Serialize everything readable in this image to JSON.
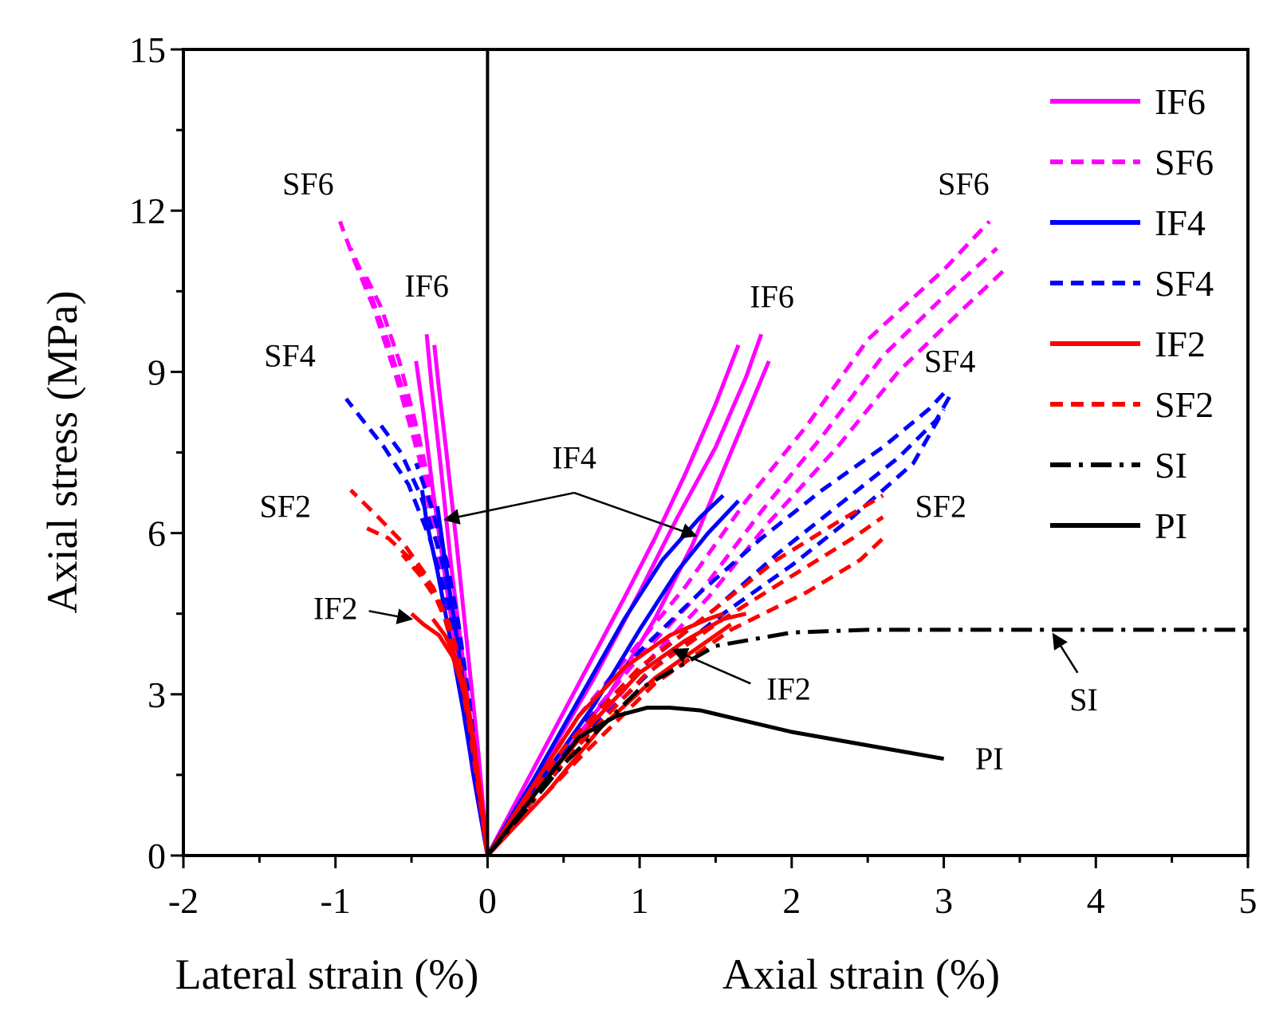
{
  "chart_data": {
    "type": "line",
    "ylabel": "Axial stress (MPa)",
    "xlabel_left": "Lateral strain (%)",
    "xlabel_right": "Axial strain (%)",
    "xlim": [
      -2,
      5
    ],
    "ylim": [
      0,
      15
    ],
    "x_ticks": [
      "-2",
      "-1",
      "0",
      "1",
      "2",
      "3",
      "4",
      "5"
    ],
    "y_ticks": [
      "0",
      "3",
      "6",
      "9",
      "12",
      "15"
    ],
    "grid": false,
    "legend_position": "top-right",
    "legend": [
      {
        "name": "IF6",
        "color": "#ff00ff",
        "style": "solid"
      },
      {
        "name": "SF6",
        "color": "#ff00ff",
        "style": "dash"
      },
      {
        "name": "IF4",
        "color": "#0000ff",
        "style": "solid"
      },
      {
        "name": "SF4",
        "color": "#0000ff",
        "style": "dash"
      },
      {
        "name": "IF2",
        "color": "#ff0000",
        "style": "solid"
      },
      {
        "name": "SF2",
        "color": "#ff0000",
        "style": "dash"
      },
      {
        "name": "SI",
        "color": "#000000",
        "style": "dashdot"
      },
      {
        "name": "PI",
        "color": "#000000",
        "style": "solid"
      }
    ],
    "series": [
      {
        "name": "IF6",
        "color": "#ff00ff",
        "style": "solid",
        "curves": [
          {
            "x": [
              0,
              0.3,
              0.6,
              0.9,
              1.1,
              1.3,
              1.5,
              1.65
            ],
            "y": [
              0,
              1.6,
              3.2,
              4.8,
              5.9,
              7.1,
              8.4,
              9.5
            ]
          },
          {
            "x": [
              0,
              0.35,
              0.7,
              1.0,
              1.25,
              1.5,
              1.7,
              1.8
            ],
            "y": [
              0,
              1.6,
              3.3,
              4.9,
              6.3,
              7.6,
              8.9,
              9.7
            ]
          },
          {
            "x": [
              0,
              0.4,
              0.8,
              1.1,
              1.35,
              1.6,
              1.85
            ],
            "y": [
              0,
              1.5,
              3.0,
              4.4,
              5.8,
              7.5,
              9.2
            ]
          },
          {
            "x": [
              0,
              -0.1,
              -0.18,
              -0.27,
              -0.36,
              -0.42,
              -0.47
            ],
            "y": [
              0,
              1.6,
              3.3,
              5.0,
              6.8,
              8.2,
              9.2
            ]
          },
          {
            "x": [
              0,
              -0.08,
              -0.16,
              -0.24,
              -0.31,
              -0.37,
              -0.4
            ],
            "y": [
              0,
              1.8,
              3.6,
              5.4,
              7.3,
              8.8,
              9.7
            ]
          },
          {
            "x": [
              0,
              -0.06,
              -0.13,
              -0.2,
              -0.27,
              -0.32,
              -0.35
            ],
            "y": [
              0,
              1.9,
              3.8,
              5.7,
              7.5,
              8.7,
              9.5
            ]
          }
        ]
      },
      {
        "name": "SF6",
        "color": "#ff00ff",
        "style": "dash",
        "curves": [
          {
            "x": [
              0,
              0.6,
              0.95,
              1.3,
              1.7,
              2.1,
              2.5,
              3.0,
              3.3
            ],
            "y": [
              0,
              2.6,
              3.8,
              5.0,
              6.6,
              8.0,
              9.6,
              10.9,
              11.8
            ]
          },
          {
            "x": [
              0,
              0.65,
              1.0,
              1.4,
              1.8,
              2.2,
              2.6,
              3.0,
              3.35
            ],
            "y": [
              0,
              2.5,
              3.7,
              4.9,
              6.4,
              7.8,
              9.3,
              10.4,
              11.3
            ]
          },
          {
            "x": [
              0,
              0.7,
              1.05,
              1.45,
              1.85,
              2.3,
              2.7,
              3.1,
              3.4
            ],
            "y": [
              0,
              2.4,
              3.6,
              4.8,
              6.2,
              7.6,
              9.0,
              10.1,
              10.9
            ]
          },
          {
            "x": [
              0,
              -0.1,
              -0.2,
              -0.32,
              -0.45,
              -0.6,
              -0.75,
              -0.88,
              -0.97
            ],
            "y": [
              0,
              1.7,
              3.5,
              5.6,
              7.4,
              8.9,
              10.2,
              11.1,
              11.8
            ]
          },
          {
            "x": [
              0,
              -0.1,
              -0.19,
              -0.28,
              -0.4,
              -0.52,
              -0.66,
              -0.79,
              -0.9
            ],
            "y": [
              0,
              1.7,
              3.4,
              5.2,
              6.9,
              8.3,
              9.6,
              10.6,
              11.3
            ]
          },
          {
            "x": [
              0,
              -0.09,
              -0.17,
              -0.25,
              -0.35,
              -0.46,
              -0.58,
              -0.7,
              -0.82
            ],
            "y": [
              0,
              1.6,
              3.2,
              4.9,
              6.5,
              7.9,
              9.2,
              10.2,
              10.9
            ]
          }
        ]
      },
      {
        "name": "IF4",
        "color": "#0000ff",
        "style": "solid",
        "curves": [
          {
            "x": [
              0,
              0.3,
              0.6,
              0.9,
              1.15,
              1.4,
              1.55
            ],
            "y": [
              0,
              1.4,
              2.9,
              4.4,
              5.5,
              6.3,
              6.7
            ]
          },
          {
            "x": [
              0,
              0.35,
              0.7,
              1.0,
              1.25,
              1.45,
              1.65
            ],
            "y": [
              0,
              1.4,
              2.8,
              4.2,
              5.3,
              6.0,
              6.6
            ]
          },
          {
            "x": [
              0,
              -0.08,
              -0.16,
              -0.25,
              -0.33,
              -0.4,
              -0.43
            ],
            "y": [
              0,
              1.3,
              2.7,
              4.1,
              5.3,
              6.2,
              6.8
            ]
          },
          {
            "x": [
              0,
              -0.07,
              -0.14,
              -0.21,
              -0.28,
              -0.33
            ],
            "y": [
              0,
              1.4,
              2.8,
              4.2,
              5.5,
              6.5
            ]
          }
        ]
      },
      {
        "name": "SF4",
        "color": "#0000ff",
        "style": "dash",
        "curves": [
          {
            "x": [
              0,
              0.6,
              1.0,
              1.4,
              1.8,
              2.2,
              2.6,
              2.9,
              3.0
            ],
            "y": [
              0,
              2.6,
              3.8,
              4.9,
              5.9,
              6.8,
              7.6,
              8.3,
              8.6
            ]
          },
          {
            "x": [
              0,
              0.65,
              1.05,
              1.5,
              1.9,
              2.3,
              2.7,
              2.95,
              3.05
            ],
            "y": [
              0,
              2.5,
              3.6,
              4.6,
              5.6,
              6.5,
              7.4,
              8.1,
              8.6
            ]
          },
          {
            "x": [
              0,
              0.7,
              1.1,
              1.55,
              2.0,
              2.4,
              2.8,
              3.0
            ],
            "y": [
              0,
              2.4,
              3.5,
              4.5,
              5.4,
              6.3,
              7.3,
              8.3
            ]
          },
          {
            "x": [
              0,
              -0.08,
              -0.16,
              -0.26,
              -0.38,
              -0.52,
              -0.68,
              -0.82,
              -0.93
            ],
            "y": [
              0,
              1.6,
              3.2,
              4.7,
              5.9,
              6.9,
              7.6,
              8.1,
              8.5
            ]
          },
          {
            "x": [
              0,
              -0.07,
              -0.14,
              -0.22,
              -0.32,
              -0.44,
              -0.57,
              -0.7
            ],
            "y": [
              0,
              1.5,
              3.0,
              4.5,
              5.7,
              6.7,
              7.5,
              8.0
            ]
          },
          {
            "x": [
              0,
              -0.06,
              -0.12,
              -0.19,
              -0.27,
              -0.37,
              -0.47
            ],
            "y": [
              0,
              1.4,
              2.9,
              4.3,
              5.5,
              6.5,
              7.3
            ]
          }
        ]
      },
      {
        "name": "IF2",
        "color": "#ff0000",
        "style": "solid",
        "curves": [
          {
            "x": [
              0,
              0.3,
              0.6,
              0.9,
              1.2,
              1.45,
              1.55
            ],
            "y": [
              0,
              1.3,
              2.6,
              3.5,
              4.1,
              4.4,
              4.5
            ]
          },
          {
            "x": [
              0,
              0.35,
              0.7,
              1.0,
              1.3,
              1.55,
              1.7
            ],
            "y": [
              0,
              1.3,
              2.5,
              3.4,
              4.0,
              4.4,
              4.5
            ]
          },
          {
            "x": [
              0,
              0.4,
              0.75,
              1.1,
              1.4,
              1.6
            ],
            "y": [
              0,
              1.2,
              2.4,
              3.3,
              3.9,
              4.3
            ]
          },
          {
            "x": [
              0,
              -0.05,
              -0.1,
              -0.16,
              -0.23,
              -0.32,
              -0.42,
              -0.5
            ],
            "y": [
              0,
              1.1,
              2.2,
              3.1,
              3.7,
              4.1,
              4.3,
              4.5
            ]
          },
          {
            "x": [
              0,
              -0.05,
              -0.1,
              -0.15,
              -0.21,
              -0.28,
              -0.36
            ],
            "y": [
              0,
              1.1,
              2.2,
              3.1,
              3.7,
              4.1,
              4.4
            ]
          },
          {
            "x": [
              0,
              -0.04,
              -0.09,
              -0.14,
              -0.2,
              -0.26
            ],
            "y": [
              0,
              1.0,
              2.1,
              3.0,
              3.6,
              4.0
            ]
          }
        ]
      },
      {
        "name": "SF2",
        "color": "#ff0000",
        "style": "dash",
        "curves": [
          {
            "x": [
              0,
              0.5,
              1.0,
              1.5,
              1.9,
              2.3,
              2.6
            ],
            "y": [
              0,
              2.0,
              3.5,
              4.6,
              5.5,
              6.2,
              6.7
            ]
          },
          {
            "x": [
              0,
              0.55,
              1.05,
              1.55,
              2.0,
              2.4,
              2.6
            ],
            "y": [
              0,
              1.9,
              3.4,
              4.4,
              5.2,
              5.9,
              6.3
            ]
          },
          {
            "x": [
              0,
              0.6,
              1.1,
              1.6,
              2.1,
              2.45,
              2.6
            ],
            "y": [
              0,
              1.8,
              3.2,
              4.2,
              4.9,
              5.5,
              5.9
            ]
          },
          {
            "x": [
              0,
              -0.06,
              -0.12,
              -0.19,
              -0.28,
              -0.4,
              -0.55,
              -0.72,
              -0.9
            ],
            "y": [
              0,
              1.2,
              2.4,
              3.5,
              4.4,
              5.2,
              5.8,
              6.3,
              6.8
            ]
          },
          {
            "x": [
              0,
              -0.05,
              -0.11,
              -0.17,
              -0.25,
              -0.36,
              -0.5,
              -0.65,
              -0.8
            ],
            "y": [
              0,
              1.1,
              2.3,
              3.4,
              4.3,
              5.0,
              5.5,
              5.9,
              6.1
            ]
          },
          {
            "x": [
              0,
              -0.05,
              -0.1,
              -0.15,
              -0.22,
              -0.32,
              -0.44,
              -0.56
            ],
            "y": [
              0,
              1.1,
              2.2,
              3.2,
              4.0,
              4.7,
              5.2,
              5.6
            ]
          }
        ]
      },
      {
        "name": "SI",
        "color": "#000000",
        "style": "dashdot",
        "curves": [
          {
            "x": [
              0,
              0.5,
              1.0,
              1.5,
              2.0,
              2.5,
              3.0,
              3.5,
              4.0,
              4.5,
              5.0
            ],
            "y": [
              0,
              1.7,
              3.1,
              3.9,
              4.15,
              4.2,
              4.2,
              4.2,
              4.2,
              4.2,
              4.2
            ]
          }
        ]
      },
      {
        "name": "PI",
        "color": "#000000",
        "style": "solid",
        "curves": [
          {
            "x": [
              0,
              0.3,
              0.6,
              0.85,
              1.05,
              1.2,
              1.4,
              1.7,
              2.0,
              2.4,
              2.8,
              3.0
            ],
            "y": [
              0,
              1.1,
              2.2,
              2.6,
              2.75,
              2.75,
              2.7,
              2.5,
              2.3,
              2.1,
              1.9,
              1.8
            ]
          }
        ]
      }
    ],
    "annotations": [
      {
        "text": "SF6",
        "x": -1.18,
        "y": 12.3
      },
      {
        "text": "IF6",
        "x": -0.4,
        "y": 10.4
      },
      {
        "text": "SF4",
        "x": -1.3,
        "y": 9.1
      },
      {
        "text": "SF2",
        "x": -1.33,
        "y": 6.3
      },
      {
        "text": "IF2",
        "x": -1.0,
        "y": 4.4
      },
      {
        "text": "IF4",
        "x": 0.57,
        "y": 7.2
      },
      {
        "text": "IF6",
        "x": 1.87,
        "y": 10.2
      },
      {
        "text": "SF6",
        "x": 3.13,
        "y": 12.3
      },
      {
        "text": "SF4",
        "x": 3.04,
        "y": 9.0
      },
      {
        "text": "SF2",
        "x": 2.98,
        "y": 6.3
      },
      {
        "text": "IF2",
        "x": 1.98,
        "y": 2.9
      },
      {
        "text": "SI",
        "x": 3.92,
        "y": 2.7
      },
      {
        "text": "PI",
        "x": 3.3,
        "y": 1.6
      }
    ],
    "arrows": [
      {
        "from": [
          0.57,
          6.75
        ],
        "to": [
          -0.28,
          6.25
        ]
      },
      {
        "from": [
          0.57,
          6.75
        ],
        "to": [
          1.37,
          5.95
        ]
      },
      {
        "from": [
          -0.78,
          4.55
        ],
        "to": [
          -0.5,
          4.4
        ]
      },
      {
        "from": [
          1.73,
          3.2
        ],
        "to": [
          1.22,
          3.83
        ]
      },
      {
        "from": [
          3.88,
          3.4
        ],
        "to": [
          3.72,
          4.12
        ]
      }
    ]
  }
}
